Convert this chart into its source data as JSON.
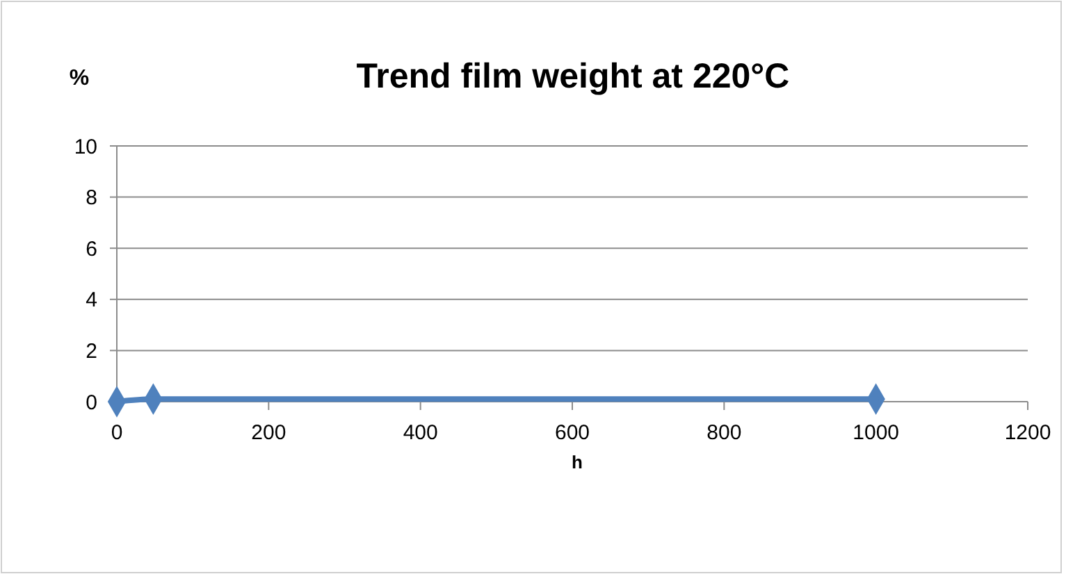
{
  "chart_data": {
    "type": "line",
    "title": "Trend film weight at 220°C",
    "xlabel": "h",
    "ylabel": "%",
    "series": [
      {
        "color": "#4f81bd",
        "x": [
          0,
          48,
          1000
        ],
        "values": [
          0,
          0.1,
          0.1
        ]
      }
    ],
    "xlim": [
      0,
      1200
    ],
    "xticks": [
      0,
      200,
      400,
      600,
      800,
      1000,
      1200
    ],
    "ylim": [
      0,
      10
    ],
    "yticks": [
      0,
      2,
      4,
      6,
      8,
      10
    ],
    "grid": "y",
    "marker": "diamond"
  }
}
